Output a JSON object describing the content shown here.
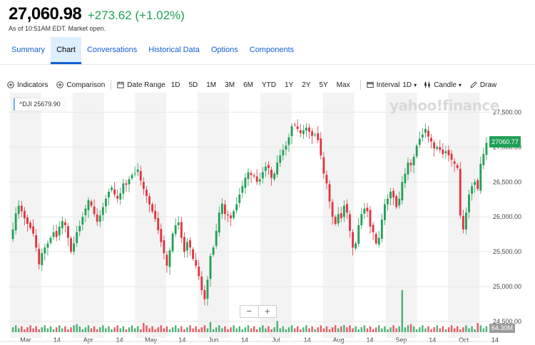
{
  "quote": {
    "price": "27,060.98",
    "change": "+273.62 (+1.02%)",
    "asof": "As of 10:51AM EDT. Market open."
  },
  "tabs": [
    {
      "label": "Summary"
    },
    {
      "label": "Chart"
    },
    {
      "label": "Conversations"
    },
    {
      "label": "Historical Data"
    },
    {
      "label": "Options"
    },
    {
      "label": "Components"
    }
  ],
  "toolbar": {
    "indicators": "Indicators",
    "comparison": "Comparison",
    "date_range": "Date Range",
    "ranges": [
      "1D",
      "5D",
      "1M",
      "3M",
      "6M",
      "YTD",
      "1Y",
      "2Y",
      "5Y",
      "Max"
    ],
    "interval_label": "Interval",
    "interval_value": "1D",
    "chart_type": "Candle",
    "draw": "Draw"
  },
  "colors": {
    "up": "#21a056",
    "down": "#e03440",
    "accent": "#1260d4"
  },
  "chart_data": {
    "type": "candlestick",
    "symbol_label": "^DJI  25679.90",
    "watermark": "yahoo!finance",
    "y_ticks": [
      "27,500.00",
      "27,000.00",
      "26,500.00",
      "26,000.00",
      "25,500.00",
      "25,000.00",
      "24,500.00"
    ],
    "y_tick_values": [
      27500,
      27000,
      26500,
      26000,
      25500,
      25000,
      24500
    ],
    "ylim": [
      24470,
      27780
    ],
    "x_labels": [
      "Mar",
      "14",
      "Apr",
      "14",
      "May",
      "14",
      "Jun",
      "14",
      "Jul",
      "14",
      "Aug",
      "14",
      "Sep",
      "14",
      "Oct",
      "14"
    ],
    "current_price_label": "27060.77",
    "volume_label": "64.30M",
    "closes": [
      25700,
      25820,
      26050,
      26160,
      26080,
      25980,
      25900,
      25840,
      25760,
      25560,
      25320,
      25480,
      25560,
      25620,
      25700,
      25780,
      25710,
      25860,
      25940,
      25880,
      25700,
      25500,
      25620,
      25780,
      25870,
      26000,
      26120,
      26240,
      26160,
      26040,
      25930,
      26020,
      26140,
      26260,
      26360,
      26420,
      26320,
      26260,
      26340,
      26480,
      26460,
      26540,
      26600,
      26620,
      26680,
      26520,
      26400,
      26300,
      26180,
      26080,
      25970,
      25810,
      25640,
      25480,
      25300,
      25520,
      25760,
      25880,
      25920,
      25700,
      25500,
      25640,
      25560,
      25400,
      25300,
      25150,
      24950,
      24820,
      25100,
      25440,
      25560,
      25800,
      26060,
      26190,
      26040,
      26020,
      25980,
      26080,
      26180,
      26320,
      26440,
      26560,
      26640,
      26600,
      26580,
      26500,
      26540,
      26640,
      26720,
      26700,
      26560,
      26620,
      26780,
      26880,
      26960,
      27020,
      27140,
      27300,
      27320,
      27260,
      27200,
      27240,
      27280,
      27220,
      27160,
      27180,
      27100,
      26880,
      26620,
      26480,
      26220,
      26000,
      25900,
      26040,
      25980,
      26160,
      26060,
      25800,
      25560,
      25620,
      25880,
      26040,
      26120,
      26080,
      25860,
      25780,
      25620,
      25700,
      25960,
      26180,
      26260,
      26360,
      26280,
      26140,
      26260,
      26500,
      26620,
      26780,
      26740,
      26860,
      27020,
      27120,
      27180,
      27260,
      27150,
      27080,
      26980,
      27000,
      26960,
      26900,
      26940,
      26880,
      26820,
      26760,
      26700,
      26020,
      25820,
      26060,
      26320,
      26440,
      26500,
      26400,
      26760,
      26900,
      27060
    ]
  }
}
